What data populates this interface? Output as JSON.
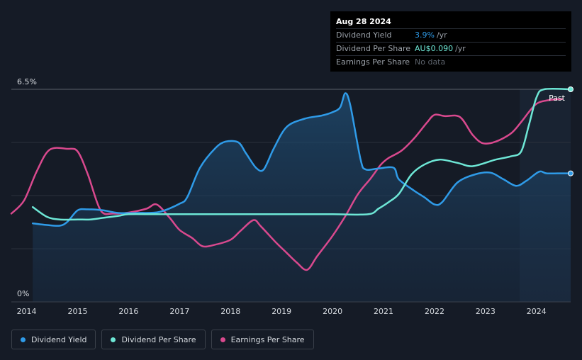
{
  "tooltip": {
    "date": "Aug 28 2024",
    "rows": [
      {
        "label": "Dividend Yield",
        "value": "3.9%",
        "unit": "/yr"
      },
      {
        "label": "Dividend Per Share",
        "value": "AU$0.090",
        "unit": "/yr"
      },
      {
        "label": "Earnings Per Share",
        "value": "No data",
        "unit": ""
      }
    ]
  },
  "legend": [
    {
      "label": "Dividend Yield",
      "color": "#2f9be8"
    },
    {
      "label": "Dividend Per Share",
      "color": "#6ee7d6"
    },
    {
      "label": "Earnings Per Share",
      "color": "#d9498e"
    }
  ],
  "chart_data": {
    "type": "line",
    "y_top_label": "6.5%",
    "y_bottom_label": "0%",
    "past_label": "Past",
    "ylim": [
      0,
      6.5
    ],
    "xlim": [
      2013.7,
      2024.67
    ],
    "past_start": 2023.67,
    "x_ticks": [
      "2014",
      "2015",
      "2016",
      "2017",
      "2018",
      "2019",
      "2020",
      "2021",
      "2022",
      "2023",
      "2024"
    ],
    "series": [
      {
        "name": "Dividend Yield",
        "color": "#2f9be8",
        "area": true,
        "points": [
          [
            2014.12,
            2.4
          ],
          [
            2014.4,
            2.35
          ],
          [
            2014.65,
            2.33
          ],
          [
            2014.8,
            2.45
          ],
          [
            2015.0,
            2.8
          ],
          [
            2015.2,
            2.83
          ],
          [
            2015.5,
            2.8
          ],
          [
            2015.8,
            2.72
          ],
          [
            2016.2,
            2.72
          ],
          [
            2016.6,
            2.75
          ],
          [
            2017.0,
            3.0
          ],
          [
            2017.15,
            3.2
          ],
          [
            2017.4,
            4.1
          ],
          [
            2017.7,
            4.7
          ],
          [
            2017.9,
            4.9
          ],
          [
            2018.15,
            4.88
          ],
          [
            2018.3,
            4.55
          ],
          [
            2018.5,
            4.1
          ],
          [
            2018.65,
            4.05
          ],
          [
            2018.85,
            4.7
          ],
          [
            2019.1,
            5.35
          ],
          [
            2019.45,
            5.6
          ],
          [
            2019.8,
            5.7
          ],
          [
            2020.0,
            5.8
          ],
          [
            2020.15,
            5.95
          ],
          [
            2020.25,
            6.38
          ],
          [
            2020.35,
            6.0
          ],
          [
            2020.55,
            4.35
          ],
          [
            2020.65,
            4.05
          ],
          [
            2020.9,
            4.08
          ],
          [
            2021.2,
            4.1
          ],
          [
            2021.3,
            3.75
          ],
          [
            2021.6,
            3.4
          ],
          [
            2021.8,
            3.2
          ],
          [
            2022.0,
            2.98
          ],
          [
            2022.15,
            3.05
          ],
          [
            2022.45,
            3.65
          ],
          [
            2022.8,
            3.9
          ],
          [
            2023.1,
            3.95
          ],
          [
            2023.35,
            3.75
          ],
          [
            2023.6,
            3.55
          ],
          [
            2023.8,
            3.7
          ],
          [
            2024.05,
            3.98
          ],
          [
            2024.2,
            3.93
          ],
          [
            2024.5,
            3.93
          ],
          [
            2024.67,
            3.93
          ]
        ],
        "end_marker": true
      },
      {
        "name": "Dividend Per Share",
        "color": "#6ee7d6",
        "area": false,
        "points": [
          [
            2014.12,
            2.9
          ],
          [
            2014.4,
            2.6
          ],
          [
            2014.65,
            2.52
          ],
          [
            2015.0,
            2.52
          ],
          [
            2015.25,
            2.52
          ],
          [
            2015.5,
            2.57
          ],
          [
            2015.8,
            2.63
          ],
          [
            2016.0,
            2.68
          ],
          [
            2016.5,
            2.68
          ],
          [
            2017.0,
            2.68
          ],
          [
            2019.0,
            2.68
          ],
          [
            2020.0,
            2.68
          ],
          [
            2020.7,
            2.68
          ],
          [
            2020.9,
            2.85
          ],
          [
            2021.1,
            3.05
          ],
          [
            2021.3,
            3.3
          ],
          [
            2021.55,
            3.9
          ],
          [
            2021.8,
            4.2
          ],
          [
            2022.1,
            4.35
          ],
          [
            2022.45,
            4.25
          ],
          [
            2022.75,
            4.15
          ],
          [
            2023.2,
            4.35
          ],
          [
            2023.5,
            4.45
          ],
          [
            2023.7,
            4.6
          ],
          [
            2023.85,
            5.4
          ],
          [
            2024.0,
            6.25
          ],
          [
            2024.15,
            6.5
          ],
          [
            2024.67,
            6.5
          ]
        ],
        "end_marker": true
      },
      {
        "name": "Earnings Per Share",
        "color": "#d9498e",
        "area": false,
        "points": [
          [
            2013.7,
            2.7
          ],
          [
            2013.95,
            3.1
          ],
          [
            2014.2,
            4.0
          ],
          [
            2014.45,
            4.65
          ],
          [
            2014.8,
            4.68
          ],
          [
            2015.0,
            4.6
          ],
          [
            2015.2,
            3.9
          ],
          [
            2015.45,
            2.8
          ],
          [
            2015.7,
            2.7
          ],
          [
            2016.0,
            2.73
          ],
          [
            2016.35,
            2.85
          ],
          [
            2016.55,
            2.98
          ],
          [
            2016.8,
            2.58
          ],
          [
            2017.0,
            2.2
          ],
          [
            2017.25,
            1.95
          ],
          [
            2017.45,
            1.7
          ],
          [
            2017.7,
            1.75
          ],
          [
            2018.0,
            1.9
          ],
          [
            2018.2,
            2.18
          ],
          [
            2018.45,
            2.5
          ],
          [
            2018.6,
            2.3
          ],
          [
            2018.9,
            1.8
          ],
          [
            2019.1,
            1.5
          ],
          [
            2019.3,
            1.2
          ],
          [
            2019.5,
            0.98
          ],
          [
            2019.7,
            1.4
          ],
          [
            2020.0,
            2.02
          ],
          [
            2020.25,
            2.62
          ],
          [
            2020.5,
            3.3
          ],
          [
            2020.75,
            3.78
          ],
          [
            2020.95,
            4.2
          ],
          [
            2021.1,
            4.4
          ],
          [
            2021.35,
            4.62
          ],
          [
            2021.6,
            5.0
          ],
          [
            2021.85,
            5.48
          ],
          [
            2022.0,
            5.72
          ],
          [
            2022.2,
            5.68
          ],
          [
            2022.5,
            5.65
          ],
          [
            2022.75,
            5.1
          ],
          [
            2022.95,
            4.85
          ],
          [
            2023.2,
            4.9
          ],
          [
            2023.5,
            5.15
          ],
          [
            2023.7,
            5.5
          ],
          [
            2023.9,
            5.9
          ],
          [
            2024.05,
            6.1
          ],
          [
            2024.3,
            6.18
          ],
          [
            2024.5,
            6.2
          ]
        ],
        "end_marker": false
      }
    ]
  }
}
